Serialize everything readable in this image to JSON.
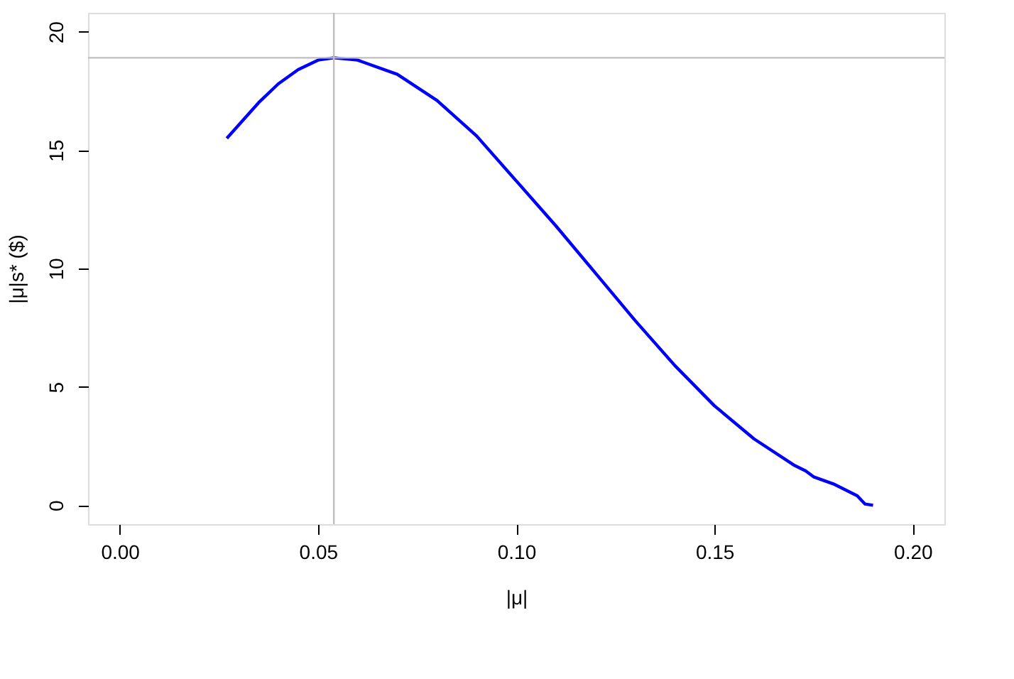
{
  "chart_data": {
    "type": "line",
    "xlabel": "|μ|",
    "ylabel": "|μ|s* ($)",
    "x": [
      0.027,
      0.035,
      0.04,
      0.045,
      0.05,
      0.054,
      0.06,
      0.07,
      0.08,
      0.09,
      0.1,
      0.11,
      0.12,
      0.13,
      0.14,
      0.15,
      0.16,
      0.17,
      0.173,
      0.175,
      0.18,
      0.186,
      0.188,
      0.19
    ],
    "series": [
      {
        "color": "#0000ff",
        "values": [
          15.5,
          17.0,
          17.8,
          18.4,
          18.8,
          18.9,
          18.8,
          18.2,
          17.1,
          15.6,
          13.7,
          11.8,
          9.8,
          7.8,
          5.9,
          4.2,
          2.8,
          1.7,
          1.45,
          1.2,
          0.9,
          0.4,
          0.05,
          0
        ]
      }
    ],
    "xlim": [
      -0.008,
      0.208
    ],
    "ylim": [
      -0.8,
      20.8
    ],
    "xticks": [
      {
        "value": 0,
        "label": "0.00"
      },
      0.05,
      {
        "value": 0.1,
        "label": "0.10"
      },
      0.15,
      {
        "value": 0.2,
        "label": "0.20"
      }
    ],
    "yticks": [
      0,
      5,
      10,
      15,
      20
    ],
    "ref_lines": [
      {
        "axis": "x",
        "value": 0.054,
        "color": "#bebebe"
      },
      {
        "axis": "y",
        "value": 18.9,
        "color": "#bebebe"
      }
    ],
    "grid": false,
    "marker": "none",
    "line_style": "solid"
  }
}
